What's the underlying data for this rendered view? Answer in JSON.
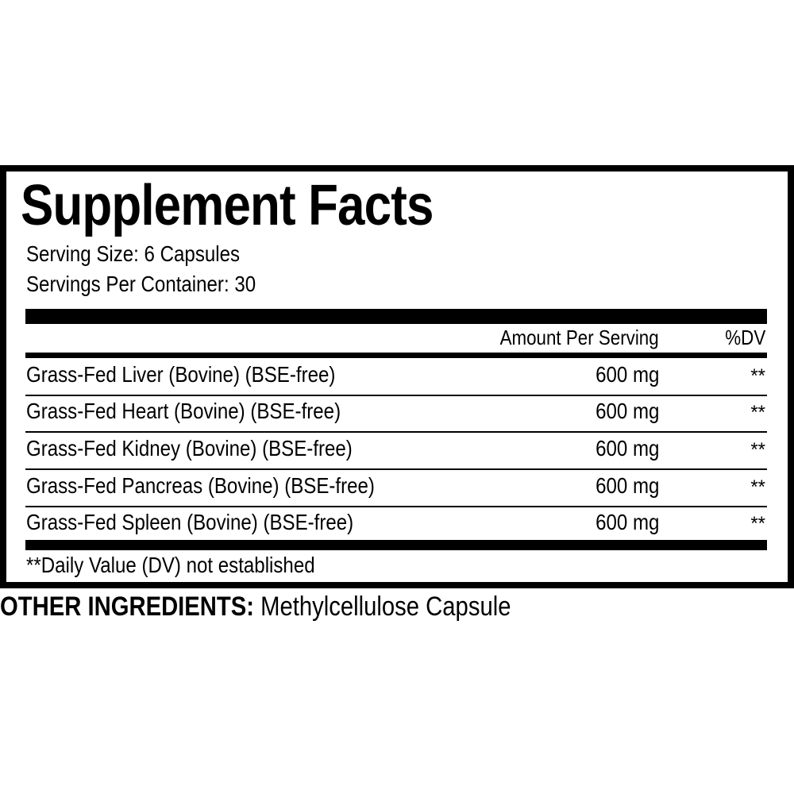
{
  "title": "Supplement Facts",
  "serving_size": "Serving Size: 6 Capsules",
  "servings_per_container": "Servings Per Container: 30",
  "header": {
    "amount": "Amount Per Serving",
    "dv": "%DV"
  },
  "rows": [
    {
      "name": "Grass-Fed Liver (Bovine) (BSE-free)",
      "amount": "600 mg",
      "dv": "**"
    },
    {
      "name": "Grass-Fed Heart (Bovine) (BSE-free)",
      "amount": "600 mg",
      "dv": "**"
    },
    {
      "name": "Grass-Fed Kidney (Bovine) (BSE-free)",
      "amount": "600 mg",
      "dv": "**"
    },
    {
      "name": "Grass-Fed Pancreas (Bovine) (BSE-free)",
      "amount": "600 mg",
      "dv": "**"
    },
    {
      "name": "Grass-Fed Spleen (Bovine) (BSE-free)",
      "amount": "600 mg",
      "dv": "**"
    }
  ],
  "footnote": "**Daily Value (DV) not established",
  "other_ingredients": {
    "label": "OTHER INGREDIENTS:",
    "value": "Methylcellulose Capsule"
  }
}
